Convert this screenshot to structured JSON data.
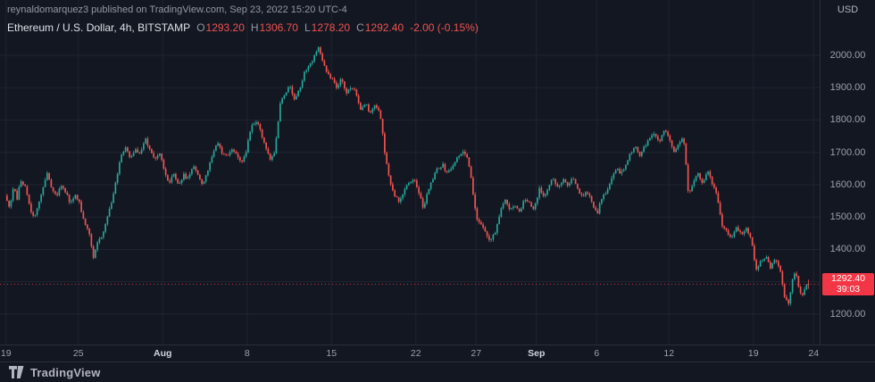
{
  "header": {
    "attribution": "reynaldomarquez3 published on TradingView.com, Sep 23, 2022 15:20 UTC-4",
    "symbol_line": "Ethereum / U.S. Dollar, 4h, BITSTAMP",
    "ohlc": {
      "o_label": "O",
      "o": "1293.20",
      "h_label": "H",
      "h": "1306.70",
      "l_label": "L",
      "l": "1278.20",
      "c_label": "C",
      "c": "1292.40",
      "change": "-2.00 (-0.15%)"
    }
  },
  "price_axis": {
    "currency": "USD"
  },
  "price_label": {
    "price": "1292.40",
    "countdown": "39:03"
  },
  "footer": {
    "brand": "TradingView"
  },
  "chart_data": {
    "type": "candlestick",
    "title": "Ethereum / U.S. Dollar, 4h, BITSTAMP",
    "interval": "4h",
    "last_candle_ohlc": {
      "open": 1293.2,
      "high": 1306.7,
      "low": 1278.2,
      "close": 1292.4,
      "change": -2.0,
      "change_pct": -0.15
    },
    "colors": {
      "up": "#26a69a",
      "down": "#ef5350",
      "label_bg": "#f23645",
      "grid": "#1f2431",
      "axis_border": "#2a2e39"
    },
    "y_axis": {
      "plot_range": [
        1106,
        2171
      ],
      "ticks": [
        {
          "label": "2000.00",
          "value": 2000
        },
        {
          "label": "1900.00",
          "value": 1900
        },
        {
          "label": "1800.00",
          "value": 1800
        },
        {
          "label": "1700.00",
          "value": 1700
        },
        {
          "label": "1600.00",
          "value": 1600
        },
        {
          "label": "1500.00",
          "value": 1500
        },
        {
          "label": "1400.00",
          "value": 1400
        },
        {
          "label": "1300.00",
          "value": 1300
        },
        {
          "label": "1200.00",
          "value": 1200
        }
      ]
    },
    "x_axis": {
      "day_range": [
        -0.5,
        67.5
      ],
      "ticks": [
        {
          "label": "19",
          "day": 0
        },
        {
          "label": "25",
          "day": 6
        },
        {
          "label": "Aug",
          "day": 13,
          "strong": true
        },
        {
          "label": "8",
          "day": 20
        },
        {
          "label": "15",
          "day": 27
        },
        {
          "label": "22",
          "day": 34
        },
        {
          "label": "27",
          "day": 39
        },
        {
          "label": "Sep",
          "day": 44,
          "strong": true
        },
        {
          "label": "6",
          "day": 49
        },
        {
          "label": "12",
          "day": 55
        },
        {
          "label": "19",
          "day": 62
        },
        {
          "label": "24",
          "day": 67
        }
      ]
    },
    "candles_per_day": 6,
    "candle_span": [
      0,
      66.67
    ],
    "seed": 5,
    "last_candle": [
      1293.2,
      1306.7,
      1278.2,
      1292.4
    ],
    "price_path": [
      [
        0,
        1566
      ],
      [
        0.4,
        1524
      ],
      [
        0.7,
        1598
      ],
      [
        1,
        1556
      ],
      [
        1.3,
        1618
      ],
      [
        1.7,
        1588
      ],
      [
        2,
        1536
      ],
      [
        2.4,
        1493
      ],
      [
        2.8,
        1542
      ],
      [
        3.2,
        1600
      ],
      [
        3.5,
        1638
      ],
      [
        3.9,
        1580
      ],
      [
        4.3,
        1560
      ],
      [
        4.7,
        1604
      ],
      [
        5,
        1580
      ],
      [
        5.4,
        1545
      ],
      [
        5.8,
        1570
      ],
      [
        6.2,
        1540
      ],
      [
        6.6,
        1480
      ],
      [
        7,
        1450
      ],
      [
        7.3,
        1374
      ],
      [
        7.6,
        1420
      ],
      [
        8,
        1440
      ],
      [
        8.4,
        1488
      ],
      [
        8.8,
        1540
      ],
      [
        9.2,
        1610
      ],
      [
        9.6,
        1688
      ],
      [
        10,
        1720
      ],
      [
        10.4,
        1680
      ],
      [
        10.8,
        1712
      ],
      [
        11.2,
        1695
      ],
      [
        11.6,
        1745
      ],
      [
        12,
        1710
      ],
      [
        12.4,
        1680
      ],
      [
        12.8,
        1700
      ],
      [
        13.2,
        1645
      ],
      [
        13.6,
        1605
      ],
      [
        14,
        1632
      ],
      [
        14.4,
        1596
      ],
      [
        14.8,
        1630
      ],
      [
        15.2,
        1618
      ],
      [
        15.6,
        1660
      ],
      [
        16,
        1630
      ],
      [
        16.4,
        1600
      ],
      [
        16.8,
        1640
      ],
      [
        17.2,
        1690
      ],
      [
        17.6,
        1736
      ],
      [
        18,
        1700
      ],
      [
        18.4,
        1688
      ],
      [
        18.8,
        1710
      ],
      [
        19.2,
        1700
      ],
      [
        19.6,
        1668
      ],
      [
        20,
        1705
      ],
      [
        20.4,
        1775
      ],
      [
        20.8,
        1800
      ],
      [
        21.2,
        1770
      ],
      [
        21.6,
        1712
      ],
      [
        22,
        1680
      ],
      [
        22.4,
        1705
      ],
      [
        22.8,
        1845
      ],
      [
        23.2,
        1880
      ],
      [
        23.6,
        1912
      ],
      [
        24,
        1860
      ],
      [
        24.4,
        1890
      ],
      [
        24.8,
        1945
      ],
      [
        25.2,
        1965
      ],
      [
        25.6,
        1990
      ],
      [
        26,
        2022
      ],
      [
        26.3,
        1988
      ],
      [
        26.7,
        1942
      ],
      [
        27.1,
        1932
      ],
      [
        27.5,
        1898
      ],
      [
        27.9,
        1925
      ],
      [
        28.3,
        1882
      ],
      [
        28.7,
        1905
      ],
      [
        29.1,
        1890
      ],
      [
        29.5,
        1832
      ],
      [
        29.9,
        1855
      ],
      [
        30.3,
        1818
      ],
      [
        30.7,
        1848
      ],
      [
        31.1,
        1828
      ],
      [
        31.5,
        1700
      ],
      [
        31.9,
        1615
      ],
      [
        32.3,
        1572
      ],
      [
        32.7,
        1540
      ],
      [
        33.1,
        1585
      ],
      [
        33.5,
        1605
      ],
      [
        33.9,
        1622
      ],
      [
        34.3,
        1580
      ],
      [
        34.7,
        1528
      ],
      [
        35.1,
        1585
      ],
      [
        35.5,
        1622
      ],
      [
        35.9,
        1650
      ],
      [
        36.3,
        1662
      ],
      [
        36.7,
        1632
      ],
      [
        37.1,
        1660
      ],
      [
        37.5,
        1682
      ],
      [
        37.9,
        1700
      ],
      [
        38.3,
        1695
      ],
      [
        38.7,
        1612
      ],
      [
        39.1,
        1500
      ],
      [
        39.5,
        1478
      ],
      [
        39.9,
        1448
      ],
      [
        40.3,
        1428
      ],
      [
        40.7,
        1455
      ],
      [
        41.1,
        1522
      ],
      [
        41.5,
        1552
      ],
      [
        41.9,
        1518
      ],
      [
        42.3,
        1542
      ],
      [
        42.7,
        1515
      ],
      [
        43.1,
        1560
      ],
      [
        43.5,
        1548
      ],
      [
        43.9,
        1520
      ],
      [
        44.3,
        1588
      ],
      [
        44.7,
        1560
      ],
      [
        45.1,
        1600
      ],
      [
        45.5,
        1618
      ],
      [
        45.9,
        1585
      ],
      [
        46.3,
        1620
      ],
      [
        46.7,
        1600
      ],
      [
        47.1,
        1628
      ],
      [
        47.5,
        1590
      ],
      [
        47.9,
        1560
      ],
      [
        48.3,
        1580
      ],
      [
        48.7,
        1548
      ],
      [
        49.1,
        1505
      ],
      [
        49.5,
        1560
      ],
      [
        49.9,
        1580
      ],
      [
        50.3,
        1620
      ],
      [
        50.7,
        1650
      ],
      [
        51.1,
        1635
      ],
      [
        51.5,
        1665
      ],
      [
        51.9,
        1700
      ],
      [
        52.3,
        1715
      ],
      [
        52.7,
        1690
      ],
      [
        53.1,
        1720
      ],
      [
        53.5,
        1748
      ],
      [
        53.9,
        1760
      ],
      [
        54.3,
        1735
      ],
      [
        54.7,
        1770
      ],
      [
        55.1,
        1740
      ],
      [
        55.5,
        1700
      ],
      [
        55.9,
        1728
      ],
      [
        56.3,
        1745
      ],
      [
        56.7,
        1572
      ],
      [
        57.1,
        1602
      ],
      [
        57.5,
        1635
      ],
      [
        57.9,
        1605
      ],
      [
        58.3,
        1648
      ],
      [
        58.7,
        1600
      ],
      [
        59.1,
        1560
      ],
      [
        59.5,
        1472
      ],
      [
        59.9,
        1455
      ],
      [
        60.3,
        1432
      ],
      [
        60.7,
        1470
      ],
      [
        61.1,
        1445
      ],
      [
        61.5,
        1468
      ],
      [
        61.9,
        1432
      ],
      [
        62.3,
        1332
      ],
      [
        62.7,
        1362
      ],
      [
        63.1,
        1380
      ],
      [
        63.5,
        1345
      ],
      [
        63.9,
        1368
      ],
      [
        64.3,
        1338
      ],
      [
        64.7,
        1250
      ],
      [
        65,
        1228
      ],
      [
        65.3,
        1308
      ],
      [
        65.6,
        1330
      ],
      [
        65.9,
        1272
      ],
      [
        66.2,
        1255
      ],
      [
        66.5,
        1293
      ],
      [
        66.67,
        1292.4
      ]
    ]
  }
}
